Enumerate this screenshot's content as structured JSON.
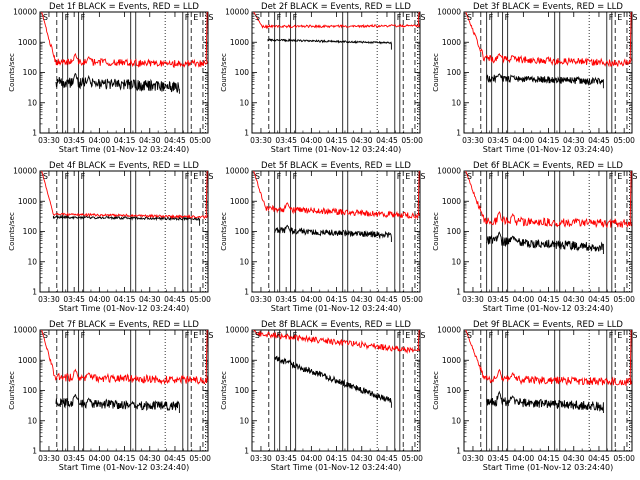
{
  "figure": {
    "x_ticks": [
      "03:30",
      "03:45",
      "04:00",
      "04:15",
      "04:30",
      "04:45",
      "05:00"
    ],
    "y_ticks": [
      "1",
      "10",
      "100",
      "1000",
      "10000"
    ],
    "xlabel": "Start Time (01-Nov-12 03:24:40)",
    "ylabel": "Counts/sec",
    "colors": {
      "events": "#000000",
      "lld": "#ff0000",
      "axes": "#000000",
      "background": "#ffffff"
    }
  },
  "chart_data": [
    {
      "id": 1,
      "type": "line",
      "title": "Det 1f BLACK = Events, RED = LLD",
      "x_unit": "minutes after 03:24:40",
      "xlim": [
        0,
        100
      ],
      "ylim": [
        1,
        10000
      ],
      "yscale": "log",
      "markers": [
        {
          "label": "S",
          "x": 0.5
        },
        {
          "label": "F",
          "x": 13.5
        },
        {
          "label": "F",
          "x": 23
        },
        {
          "label": "F",
          "x": 85
        },
        {
          "label": "E",
          "x": 90
        },
        {
          "label": "S",
          "x": 99
        }
      ],
      "solid_lines": [
        13.5,
        16.5,
        23,
        26,
        54,
        57,
        85,
        88
      ],
      "dashed_lines": [
        10,
        90,
        97
      ],
      "dotted_lines": [
        74.5,
        98.5
      ],
      "series": [
        {
          "name": "Events",
          "color": "#000000",
          "x_start": 9.5,
          "x_end": 83,
          "base": 50,
          "end": 33,
          "noise": 0.18,
          "spikes": [
            [
              21,
              95
            ],
            [
              29,
              75
            ]
          ]
        },
        {
          "name": "LLD",
          "color": "#ff0000",
          "x_start": 1,
          "x_end": 99.5,
          "base": 230,
          "end": 190,
          "noise": 0.12,
          "spikes": [
            [
              21,
              420
            ],
            [
              29,
              330
            ]
          ],
          "start_peak": 10000,
          "end_peak": 10000,
          "decay_until": 9
        }
      ]
    },
    {
      "id": 2,
      "type": "line",
      "title": "Det 2f BLACK = Events, RED = LLD",
      "x_unit": "minutes after 03:24:40",
      "xlim": [
        0,
        100
      ],
      "ylim": [
        1,
        10000
      ],
      "yscale": "log",
      "markers": [
        {
          "label": "S",
          "x": 0.5
        },
        {
          "label": "F",
          "x": 13.5
        },
        {
          "label": "F",
          "x": 23
        },
        {
          "label": "F",
          "x": 85
        },
        {
          "label": "E",
          "x": 90
        },
        {
          "label": "S",
          "x": 99
        }
      ],
      "solid_lines": [
        13.5,
        16.5,
        23,
        26,
        54,
        57,
        85,
        88
      ],
      "dashed_lines": [
        10,
        90,
        97
      ],
      "dotted_lines": [
        74.5,
        98.5
      ],
      "series": [
        {
          "name": "Events",
          "color": "#000000",
          "x_start": 9.5,
          "x_end": 83,
          "base": 1200,
          "end": 950,
          "noise": 0.03,
          "spikes": []
        },
        {
          "name": "LLD",
          "color": "#ff0000",
          "x_start": 1,
          "x_end": 99.5,
          "base": 3300,
          "end": 3500,
          "noise": 0.04,
          "spikes": [],
          "start_peak": 10000,
          "end_peak": 10000,
          "decay_until": 6
        }
      ]
    },
    {
      "id": 3,
      "type": "line",
      "title": "Det 3f BLACK = Events, RED = LLD",
      "x_unit": "minutes after 03:24:40",
      "xlim": [
        0,
        100
      ],
      "ylim": [
        1,
        10000
      ],
      "yscale": "log",
      "markers": [
        {
          "label": "S",
          "x": 0.5
        },
        {
          "label": "F",
          "x": 13.5
        },
        {
          "label": "F",
          "x": 23
        },
        {
          "label": "F",
          "x": 85
        },
        {
          "label": "E",
          "x": 90
        },
        {
          "label": "S",
          "x": 99
        }
      ],
      "solid_lines": [
        13.5,
        16.5,
        23,
        26,
        54,
        57,
        85,
        88
      ],
      "dashed_lines": [
        10,
        90,
        97
      ],
      "dotted_lines": [
        74.5,
        98.5
      ],
      "series": [
        {
          "name": "Events",
          "color": "#000000",
          "x_start": 13.5,
          "x_end": 83,
          "base": 65,
          "end": 50,
          "noise": 0.12,
          "spikes": [
            [
              21,
              90
            ],
            [
              29,
              75
            ]
          ]
        },
        {
          "name": "LLD",
          "color": "#ff0000",
          "x_start": 1,
          "x_end": 99.5,
          "base": 300,
          "end": 200,
          "noise": 0.12,
          "spikes": [
            [
              21,
              420
            ],
            [
              29,
              360
            ]
          ],
          "start_peak": 10000,
          "end_peak": 10000,
          "decay_until": 12
        }
      ]
    },
    {
      "id": 4,
      "type": "line",
      "title": "Det 4f BLACK = Events, RED = LLD",
      "x_unit": "minutes after 03:24:40",
      "xlim": [
        0,
        100
      ],
      "ylim": [
        1,
        10000
      ],
      "yscale": "log",
      "markers": [
        {
          "label": "S",
          "x": 0.5
        },
        {
          "label": "F",
          "x": 13.5
        },
        {
          "label": "F",
          "x": 23
        },
        {
          "label": "F",
          "x": 85
        },
        {
          "label": "E",
          "x": 90
        },
        {
          "label": "S",
          "x": 99
        }
      ],
      "solid_lines": [
        13.5,
        16.5,
        23,
        26,
        54,
        57,
        85,
        88
      ],
      "dashed_lines": [
        10,
        90,
        97
      ],
      "dotted_lines": [
        74.5,
        98.5
      ],
      "series": [
        {
          "name": "Events",
          "color": "#000000",
          "x_start": 8,
          "x_end": 95,
          "base": 300,
          "end": 260,
          "noise": 0.04,
          "spikes": []
        },
        {
          "name": "LLD",
          "color": "#ff0000",
          "x_start": 1,
          "x_end": 99.5,
          "base": 380,
          "end": 300,
          "noise": 0.04,
          "spikes": [],
          "start_peak": 10000,
          "end_peak": 10000,
          "decay_until": 8
        }
      ]
    },
    {
      "id": 5,
      "type": "line",
      "title": "Det 5f BLACK = Events, RED = LLD",
      "x_unit": "minutes after 03:24:40",
      "xlim": [
        0,
        100
      ],
      "ylim": [
        1,
        10000
      ],
      "yscale": "log",
      "markers": [
        {
          "label": "S",
          "x": 0.5
        },
        {
          "label": "F",
          "x": 13.5
        },
        {
          "label": "F",
          "x": 23
        },
        {
          "label": "F",
          "x": 85
        },
        {
          "label": "E",
          "x": 90
        },
        {
          "label": "S",
          "x": 99
        }
      ],
      "solid_lines": [
        13.5,
        16.5,
        23,
        26,
        54,
        57,
        85,
        88
      ],
      "dashed_lines": [
        10,
        90,
        97
      ],
      "dotted_lines": [
        74.5,
        98.5
      ],
      "series": [
        {
          "name": "Events",
          "color": "#000000",
          "x_start": 13.5,
          "x_end": 83,
          "base": 110,
          "end": 75,
          "noise": 0.1,
          "spikes": [
            [
              21,
              160
            ]
          ]
        },
        {
          "name": "LLD",
          "color": "#ff0000",
          "x_start": 1,
          "x_end": 99.5,
          "base": 600,
          "end": 330,
          "noise": 0.1,
          "spikes": [
            [
              21,
              900
            ]
          ],
          "start_peak": 10000,
          "end_peak": 10000,
          "decay_until": 8
        }
      ]
    },
    {
      "id": 6,
      "type": "line",
      "title": "Det 6f BLACK = Events, RED = LLD",
      "x_unit": "minutes after 03:24:40",
      "xlim": [
        0,
        100
      ],
      "ylim": [
        1,
        10000
      ],
      "yscale": "log",
      "markers": [
        {
          "label": "S",
          "x": 0.5
        },
        {
          "label": "F",
          "x": 13.5
        },
        {
          "label": "F",
          "x": 23
        },
        {
          "label": "F",
          "x": 85
        },
        {
          "label": "E",
          "x": 90
        },
        {
          "label": "S",
          "x": 99
        }
      ],
      "solid_lines": [
        13.5,
        16.5,
        23,
        26,
        54,
        57,
        85,
        88
      ],
      "dashed_lines": [
        10,
        90,
        97
      ],
      "dotted_lines": [
        74.5,
        98.5
      ],
      "series": [
        {
          "name": "Events",
          "color": "#000000",
          "x_start": 13.5,
          "x_end": 83,
          "base": 50,
          "end": 30,
          "noise": 0.15,
          "spikes": [
            [
              21,
              95
            ],
            [
              29,
              70
            ]
          ]
        },
        {
          "name": "LLD",
          "color": "#ff0000",
          "x_start": 1,
          "x_end": 99.5,
          "base": 230,
          "end": 180,
          "noise": 0.14,
          "spikes": [
            [
              21,
              450
            ],
            [
              29,
              380
            ]
          ],
          "start_peak": 10000,
          "end_peak": 10000,
          "decay_until": 12
        }
      ]
    },
    {
      "id": 7,
      "type": "line",
      "title": "Det 7f BLACK = Events, RED = LLD",
      "x_unit": "minutes after 03:24:40",
      "xlim": [
        0,
        100
      ],
      "ylim": [
        1,
        10000
      ],
      "yscale": "log",
      "markers": [
        {
          "label": "S",
          "x": 0.5
        },
        {
          "label": "F",
          "x": 13.5
        },
        {
          "label": "F",
          "x": 23
        },
        {
          "label": "F",
          "x": 85
        },
        {
          "label": "E",
          "x": 90
        },
        {
          "label": "S",
          "x": 99
        }
      ],
      "solid_lines": [
        13.5,
        16.5,
        23,
        26,
        54,
        57,
        85,
        88
      ],
      "dashed_lines": [
        10,
        90,
        97
      ],
      "dotted_lines": [
        74.5,
        98.5
      ],
      "series": [
        {
          "name": "Events",
          "color": "#000000",
          "x_start": 9.5,
          "x_end": 83,
          "base": 40,
          "end": 30,
          "noise": 0.15,
          "spikes": [
            [
              21,
              75
            ],
            [
              29,
              55
            ]
          ]
        },
        {
          "name": "LLD",
          "color": "#ff0000",
          "x_start": 1,
          "x_end": 99.5,
          "base": 280,
          "end": 220,
          "noise": 0.13,
          "spikes": [
            [
              21,
              500
            ],
            [
              29,
              380
            ]
          ],
          "start_peak": 10000,
          "end_peak": 10000,
          "decay_until": 9
        }
      ]
    },
    {
      "id": 8,
      "type": "line",
      "title": "Det 8f BLACK = Events, RED = LLD",
      "x_unit": "minutes after 03:24:40",
      "xlim": [
        0,
        100
      ],
      "ylim": [
        1,
        10000
      ],
      "yscale": "log",
      "markers": [
        {
          "label": "S",
          "x": 0.5
        },
        {
          "label": "F",
          "x": 13.5
        },
        {
          "label": "F",
          "x": 23
        },
        {
          "label": "F",
          "x": 85
        },
        {
          "label": "E",
          "x": 90
        },
        {
          "label": "S",
          "x": 99
        }
      ],
      "solid_lines": [
        13.5,
        16.5,
        23,
        26,
        54,
        57,
        85,
        88
      ],
      "dashed_lines": [
        10,
        90,
        97
      ],
      "dotted_lines": [
        74.5,
        98.5
      ],
      "series": [
        {
          "name": "Events",
          "color": "#000000",
          "x_start": 13.5,
          "x_end": 83,
          "base": 1200,
          "end": 45,
          "noise": 0.1,
          "spikes": [
            [
              21,
              900
            ]
          ]
        },
        {
          "name": "LLD",
          "color": "#ff0000",
          "x_start": 1,
          "x_end": 99.5,
          "base": 8000,
          "end": 2000,
          "noise": 0.1,
          "spikes": [],
          "start_peak": 10000,
          "end_peak": 10000,
          "decay_until": 4
        }
      ]
    },
    {
      "id": 9,
      "type": "line",
      "title": "Det 9f BLACK = Events, RED = LLD",
      "x_unit": "minutes after 03:24:40",
      "xlim": [
        0,
        100
      ],
      "ylim": [
        1,
        10000
      ],
      "yscale": "log",
      "markers": [
        {
          "label": "S",
          "x": 0.5
        },
        {
          "label": "F",
          "x": 13.5
        },
        {
          "label": "F",
          "x": 23
        },
        {
          "label": "F",
          "x": 85
        },
        {
          "label": "E",
          "x": 90
        },
        {
          "label": "S",
          "x": 99
        }
      ],
      "solid_lines": [
        13.5,
        16.5,
        23,
        26,
        54,
        57,
        85,
        88
      ],
      "dashed_lines": [
        10,
        90,
        97
      ],
      "dotted_lines": [
        74.5,
        98.5
      ],
      "series": [
        {
          "name": "Events",
          "color": "#000000",
          "x_start": 13.5,
          "x_end": 83,
          "base": 45,
          "end": 30,
          "noise": 0.15,
          "spikes": [
            [
              21,
              90
            ],
            [
              29,
              65
            ]
          ]
        },
        {
          "name": "LLD",
          "color": "#ff0000",
          "x_start": 1,
          "x_end": 99.5,
          "base": 250,
          "end": 190,
          "noise": 0.13,
          "spikes": [
            [
              21,
              500
            ],
            [
              29,
              380
            ]
          ],
          "start_peak": 10000,
          "end_peak": 10000,
          "decay_until": 12
        }
      ]
    }
  ]
}
